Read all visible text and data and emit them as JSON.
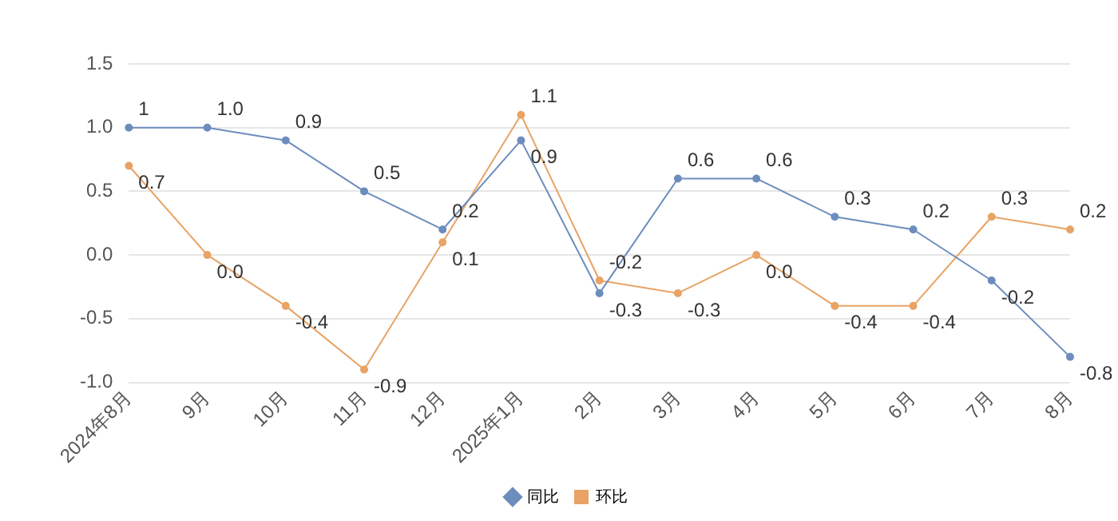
{
  "chart_data": {
    "type": "line",
    "categories": [
      "2024年8月",
      "9月",
      "10月",
      "11月",
      "12月",
      "2025年1月",
      "2月",
      "3月",
      "4月",
      "5月",
      "6月",
      "7月",
      "8月"
    ],
    "series": [
      {
        "name": "同比",
        "color": "#6d8dbd",
        "values": [
          1,
          1.0,
          0.9,
          0.5,
          0.2,
          0.9,
          -0.3,
          0.6,
          0.6,
          0.3,
          0.2,
          -0.2,
          -0.8
        ],
        "value_labels": [
          "1",
          "1.0",
          "0.9",
          "0.5",
          "0.2",
          "0.9",
          "-0.3",
          "0.6",
          "0.6",
          "0.3",
          "0.2",
          "-0.2",
          "-0.8"
        ]
      },
      {
        "name": "环比",
        "color": "#e8a365",
        "values": [
          0.7,
          0.0,
          -0.4,
          -0.9,
          0.1,
          1.1,
          -0.2,
          -0.3,
          0.0,
          -0.4,
          -0.4,
          0.3,
          0.2
        ],
        "value_labels": [
          "0.7",
          "0.0",
          "-0.4",
          "-0.9",
          "0.1",
          "1.1",
          "-0.2",
          "-0.3",
          "0.0",
          "-0.4",
          "-0.4",
          "0.3",
          "0.2"
        ]
      }
    ],
    "ylim": [
      -1,
      1.5
    ],
    "yticks": [
      {
        "value": -1,
        "label": "-1.0"
      },
      {
        "value": -0.5,
        "label": "-0.5"
      },
      {
        "value": 0,
        "label": "0.0"
      },
      {
        "value": 0.5,
        "label": "0.5"
      },
      {
        "value": 1,
        "label": "1.0"
      },
      {
        "value": 1.5,
        "label": "1.5"
      }
    ],
    "grid": "y",
    "legend": "bottom",
    "marker": "circle",
    "line_style": "solid"
  }
}
